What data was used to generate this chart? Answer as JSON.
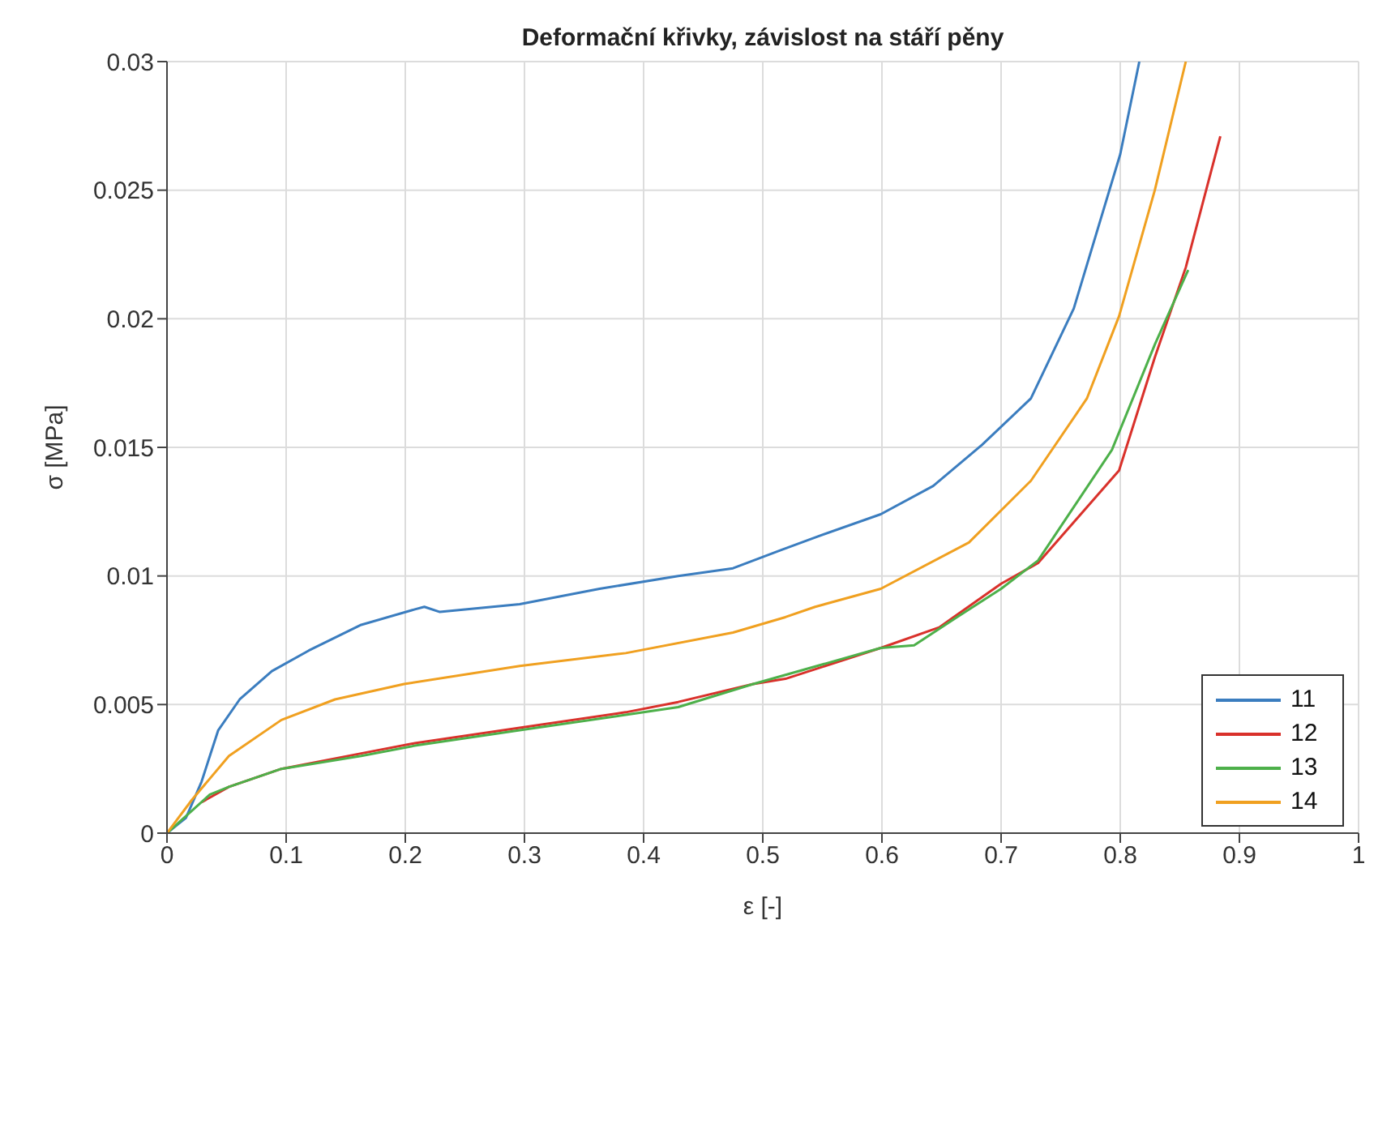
{
  "chart_data": {
    "type": "line",
    "title": "Deformační křivky, závislost na stáří pěny",
    "xlabel": "ε [-]",
    "ylabel": "σ [MPa]",
    "xlim": [
      0,
      1
    ],
    "ylim": [
      0,
      0.03
    ],
    "xticks": [
      0,
      0.1,
      0.2,
      0.3,
      0.4,
      0.5,
      0.6,
      0.7,
      0.8,
      0.9,
      1
    ],
    "yticks": [
      0,
      0.005,
      0.01,
      0.015,
      0.02,
      0.025,
      0.03
    ],
    "grid": true,
    "legend": "bottom right",
    "marker": "none",
    "line_style": "solid",
    "series": [
      {
        "name": "11",
        "color": "#3b7dbf",
        "x": [
          0,
          0.016,
          0.029,
          0.043,
          0.061,
          0.088,
          0.119,
          0.163,
          0.208,
          0.216,
          0.229,
          0.296,
          0.363,
          0.429,
          0.475,
          0.515,
          0.544,
          0.599,
          0.643,
          0.684,
          0.725,
          0.761,
          0.8,
          0.816
        ],
        "values": [
          0,
          0.0006,
          0.002,
          0.004,
          0.0052,
          0.0063,
          0.0071,
          0.0081,
          0.0087,
          0.0088,
          0.0086,
          0.0089,
          0.0095,
          0.01,
          0.0103,
          0.011,
          0.0115,
          0.0124,
          0.0135,
          0.0151,
          0.0169,
          0.0204,
          0.0264,
          0.03
        ]
      },
      {
        "name": "12",
        "color": "#d9312b",
        "x": [
          0.029,
          0.052,
          0.096,
          0.163,
          0.208,
          0.296,
          0.385,
          0.429,
          0.492,
          0.519,
          0.599,
          0.648,
          0.7,
          0.731,
          0.799,
          0.829,
          0.855,
          0.884
        ],
        "values": [
          0.0012,
          0.0018,
          0.0025,
          0.0031,
          0.0035,
          0.0041,
          0.0047,
          0.0051,
          0.0058,
          0.006,
          0.0072,
          0.008,
          0.0097,
          0.0105,
          0.0141,
          0.0185,
          0.022,
          0.0271
        ]
      },
      {
        "name": "13",
        "color": "#4db04a",
        "x": [
          0,
          0.036,
          0.052,
          0.096,
          0.163,
          0.208,
          0.296,
          0.385,
          0.429,
          0.492,
          0.599,
          0.627,
          0.663,
          0.7,
          0.731,
          0.793,
          0.829,
          0.857
        ],
        "values": [
          0,
          0.0015,
          0.0018,
          0.0025,
          0.003,
          0.0034,
          0.004,
          0.0046,
          0.0049,
          0.0058,
          0.0072,
          0.0073,
          0.0084,
          0.0095,
          0.0106,
          0.0149,
          0.019,
          0.0219
        ]
      },
      {
        "name": "14",
        "color": "#f0a020",
        "x": [
          0,
          0.021,
          0.052,
          0.096,
          0.141,
          0.199,
          0.296,
          0.385,
          0.475,
          0.519,
          0.544,
          0.599,
          0.673,
          0.725,
          0.772,
          0.799,
          0.829,
          0.855
        ],
        "values": [
          0,
          0.0013,
          0.003,
          0.0044,
          0.0052,
          0.0058,
          0.0065,
          0.007,
          0.0078,
          0.0084,
          0.0088,
          0.0095,
          0.0113,
          0.0137,
          0.0169,
          0.0201,
          0.025,
          0.03
        ]
      }
    ]
  }
}
